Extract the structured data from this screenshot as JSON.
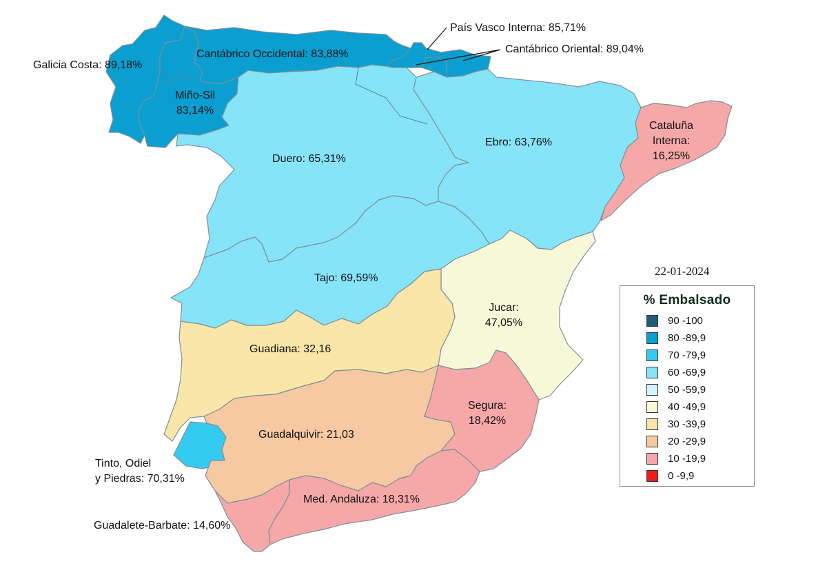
{
  "date": "22-01-2024",
  "legend": {
    "title": "% Embalsado",
    "items": [
      {
        "label": "90 -100",
        "color": "#1f5f75"
      },
      {
        "label": "80 -89,9",
        "color": "#0a9fd0"
      },
      {
        "label": "70 -79,9",
        "color": "#33ccf0"
      },
      {
        "label": "60 -69,9",
        "color": "#86e4f8"
      },
      {
        "label": "50 -59,9",
        "color": "#d4f4fa"
      },
      {
        "label": "40 -49,9",
        "color": "#f6f8d8"
      },
      {
        "label": "30 -39,9",
        "color": "#f9e6a8"
      },
      {
        "label": "20 -29,9",
        "color": "#f7c9a2"
      },
      {
        "label": "10 -19,9",
        "color": "#f6a8a8"
      },
      {
        "label": "0 -9,9",
        "color": "#ee1c1c"
      }
    ]
  },
  "basins": [
    {
      "name": "Galicia Costa",
      "label": "Galicia Costa: 89,18%",
      "value": 89.18,
      "color": "#0a9fd0"
    },
    {
      "name": "Miño-Sil",
      "label_line1": "Miño-Sil",
      "label_line2": "83,14%",
      "value": 83.14,
      "color": "#0a9fd0"
    },
    {
      "name": "Cantábrico Occidental",
      "label": "Cantábrico Occidental: 83,88%",
      "value": 83.88,
      "color": "#0a9fd0"
    },
    {
      "name": "País Vasco Interna",
      "label": "País Vasco Interna: 85,71%",
      "value": 85.71,
      "color": "#0a9fd0"
    },
    {
      "name": "Cantábrico Oriental",
      "label": "Cantábrico Oriental: 89,04%",
      "value": 89.04,
      "color": "#0a9fd0"
    },
    {
      "name": "Duero",
      "label": "Duero: 65,31%",
      "value": 65.31,
      "color": "#86e4f8"
    },
    {
      "name": "Ebro",
      "label": "Ebro: 63,76%",
      "value": 63.76,
      "color": "#86e4f8"
    },
    {
      "name": "Cataluña Interna",
      "label_line1": "Cataluña",
      "label_line2": "Interna:",
      "label_line3": "16,25%",
      "value": 16.25,
      "color": "#f6a8a8"
    },
    {
      "name": "Tajo",
      "label": "Tajo: 69,59%",
      "value": 69.59,
      "color": "#86e4f8"
    },
    {
      "name": "Jucar",
      "label_line1": "Jucar:",
      "label_line2": "47,05%",
      "value": 47.05,
      "color": "#f6f8d8"
    },
    {
      "name": "Guadiana",
      "label": "Guadiana: 32,16",
      "value": 32.16,
      "color": "#f9e6a8"
    },
    {
      "name": "Segura",
      "label_line1": "Segura:",
      "label_line2": "18,42%",
      "value": 18.42,
      "color": "#f6a8a8"
    },
    {
      "name": "Guadalquivir",
      "label": "Guadalquivir: 21,03",
      "value": 21.03,
      "color": "#f7c9a2"
    },
    {
      "name": "Tinto, Odiel y Piedras",
      "label_line1": "Tinto, Odiel",
      "label_line2": "y Piedras: 70,31%",
      "value": 70.31,
      "color": "#33ccf0"
    },
    {
      "name": "Med. Andaluza",
      "label": "Med. Andaluza: 18,31%",
      "value": 18.31,
      "color": "#f6a8a8"
    },
    {
      "name": "Guadalete-Barbate",
      "label": "Guadalete-Barbate: 14,60%",
      "value": 14.6,
      "color": "#f6a8a8"
    }
  ]
}
